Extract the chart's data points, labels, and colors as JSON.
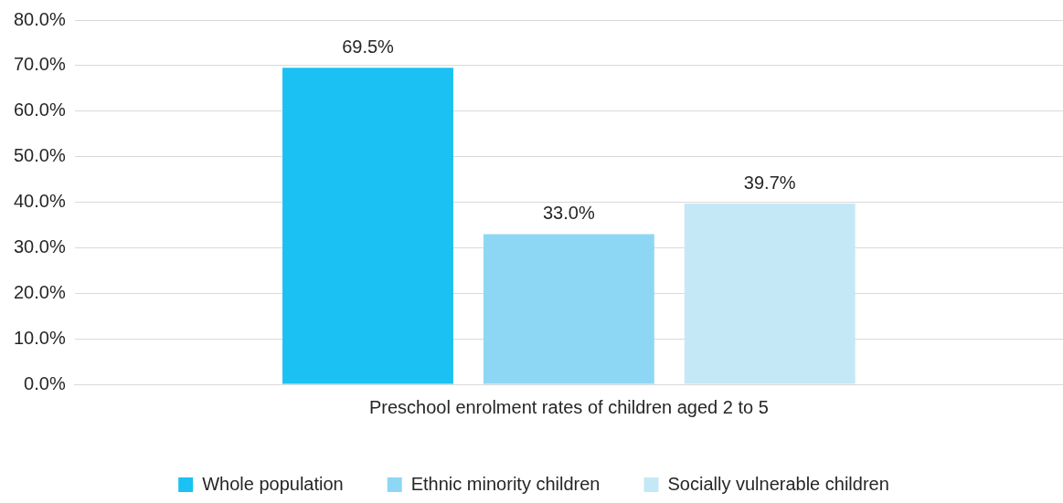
{
  "chart_data": {
    "type": "bar",
    "categories": [
      "Preschool enrolment rates of children aged 2 to 5"
    ],
    "series": [
      {
        "name": "Whole population",
        "color": "#1ac1f2",
        "values": [
          69.5
        ],
        "value_labels": [
          "69.5%"
        ]
      },
      {
        "name": "Ethnic minority children",
        "color": "#8dd7f5",
        "values": [
          33.0
        ],
        "value_labels": [
          "33.0%"
        ]
      },
      {
        "name": "Socially vulnerable children",
        "color": "#c5e8f7",
        "values": [
          39.7
        ],
        "value_labels": [
          "39.7%"
        ]
      }
    ],
    "ylim": [
      0,
      80
    ],
    "yticks": [
      {
        "value": 0,
        "label": "0.0%"
      },
      {
        "value": 10,
        "label": "10.0%"
      },
      {
        "value": 20,
        "label": "20.0%"
      },
      {
        "value": 30,
        "label": "30.0%"
      },
      {
        "value": 40,
        "label": "40.0%"
      },
      {
        "value": 50,
        "label": "50.0%"
      },
      {
        "value": 60,
        "label": "60.0%"
      },
      {
        "value": 70,
        "label": "70.0%"
      },
      {
        "value": 80,
        "label": "80.0%"
      }
    ],
    "grid": "y",
    "legend": "bottom"
  }
}
